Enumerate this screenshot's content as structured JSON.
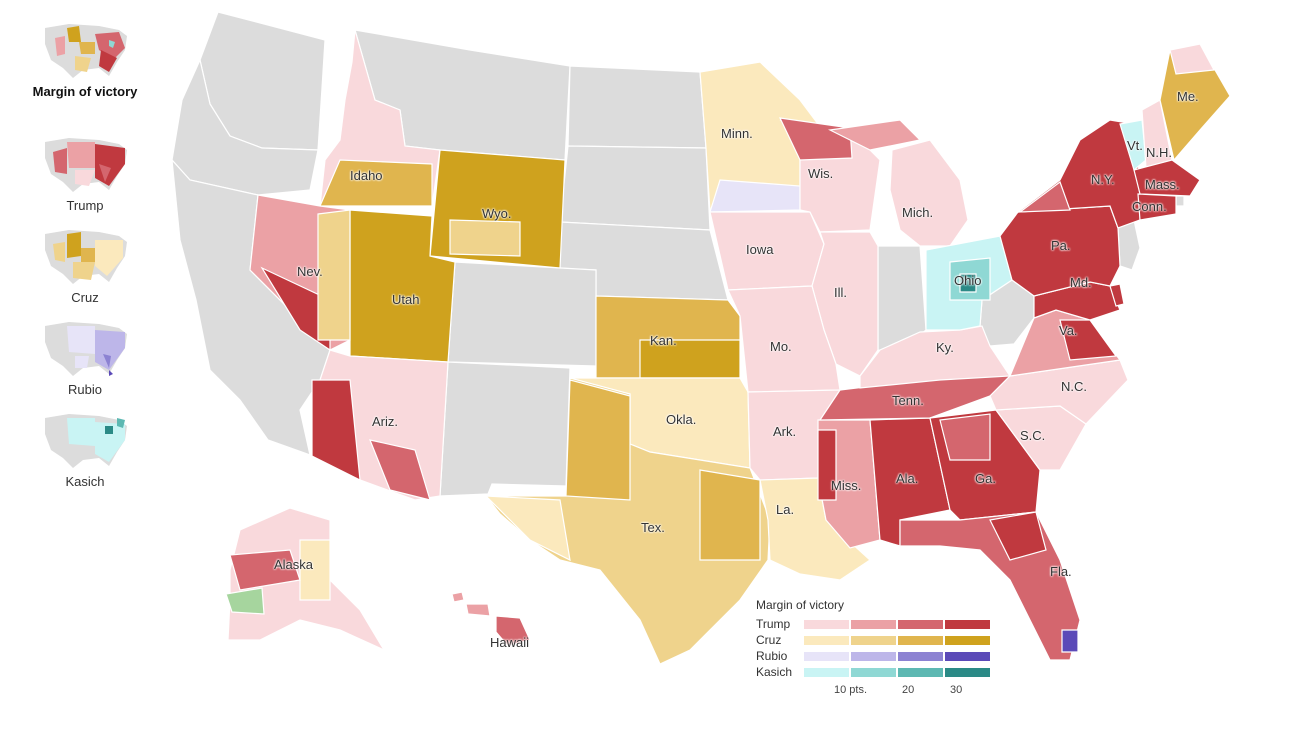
{
  "thumbnails": [
    {
      "id": "margin",
      "label": "Margin of victory",
      "active": true
    },
    {
      "id": "trump",
      "label": "Trump",
      "active": false
    },
    {
      "id": "cruz",
      "label": "Cruz",
      "active": false
    },
    {
      "id": "rubio",
      "label": "Rubio",
      "active": false
    },
    {
      "id": "kasich",
      "label": "Kasich",
      "active": false
    }
  ],
  "states": {
    "idaho": "Idaho",
    "nevada": "Nev.",
    "utah": "Utah",
    "arizona": "Ariz.",
    "wyoming": "Wyo.",
    "minnesota": "Minn.",
    "iowa": "Iowa",
    "kansas": "Kan.",
    "oklahoma": "Okla.",
    "texas": "Tex.",
    "missouri": "Mo.",
    "arkansas": "Ark.",
    "louisiana": "La.",
    "mississippi": "Miss.",
    "alabama": "Ala.",
    "georgia": "Ga.",
    "florida": "Fla.",
    "tennessee": "Tenn.",
    "kentucky": "Ky.",
    "illinois": "Ill.",
    "wisconsin": "Wis.",
    "michigan": "Mich.",
    "ohio": "Ohio",
    "pennsylvania": "Pa.",
    "new_york": "N.Y.",
    "vermont": "Vt.",
    "new_hampshire": "N.H.",
    "maine": "Me.",
    "massachusetts": "Mass.",
    "connecticut": "Conn.",
    "maryland": "Md.",
    "virginia": "Va.",
    "north_carolina": "N.C.",
    "south_carolina": "S.C.",
    "alaska": "Alaska",
    "hawaii": "Hawaii"
  },
  "legend": {
    "title": "Margin of victory",
    "candidates": [
      {
        "name": "Trump",
        "colors": [
          "#f9d9dc",
          "#eba1a5",
          "#d4666e",
          "#c0393f"
        ]
      },
      {
        "name": "Cruz",
        "colors": [
          "#fbe9bd",
          "#efd38c",
          "#e0b54e",
          "#cfa21e"
        ]
      },
      {
        "name": "Rubio",
        "colors": [
          "#e7e4f8",
          "#bdb6e9",
          "#8c82d2",
          "#5b4ab8"
        ]
      },
      {
        "name": "Kasich",
        "colors": [
          "#c9f4f4",
          "#8fd8d4",
          "#5db8b2",
          "#2b8a86"
        ]
      }
    ],
    "scale_labels": [
      "10 pts.",
      "20",
      "30"
    ],
    "scale_values": [
      10,
      20,
      30
    ]
  },
  "colors": {
    "no_data": "#dcdcdc",
    "border": "#ffffff",
    "other_candidate": "#a6d59e"
  }
}
